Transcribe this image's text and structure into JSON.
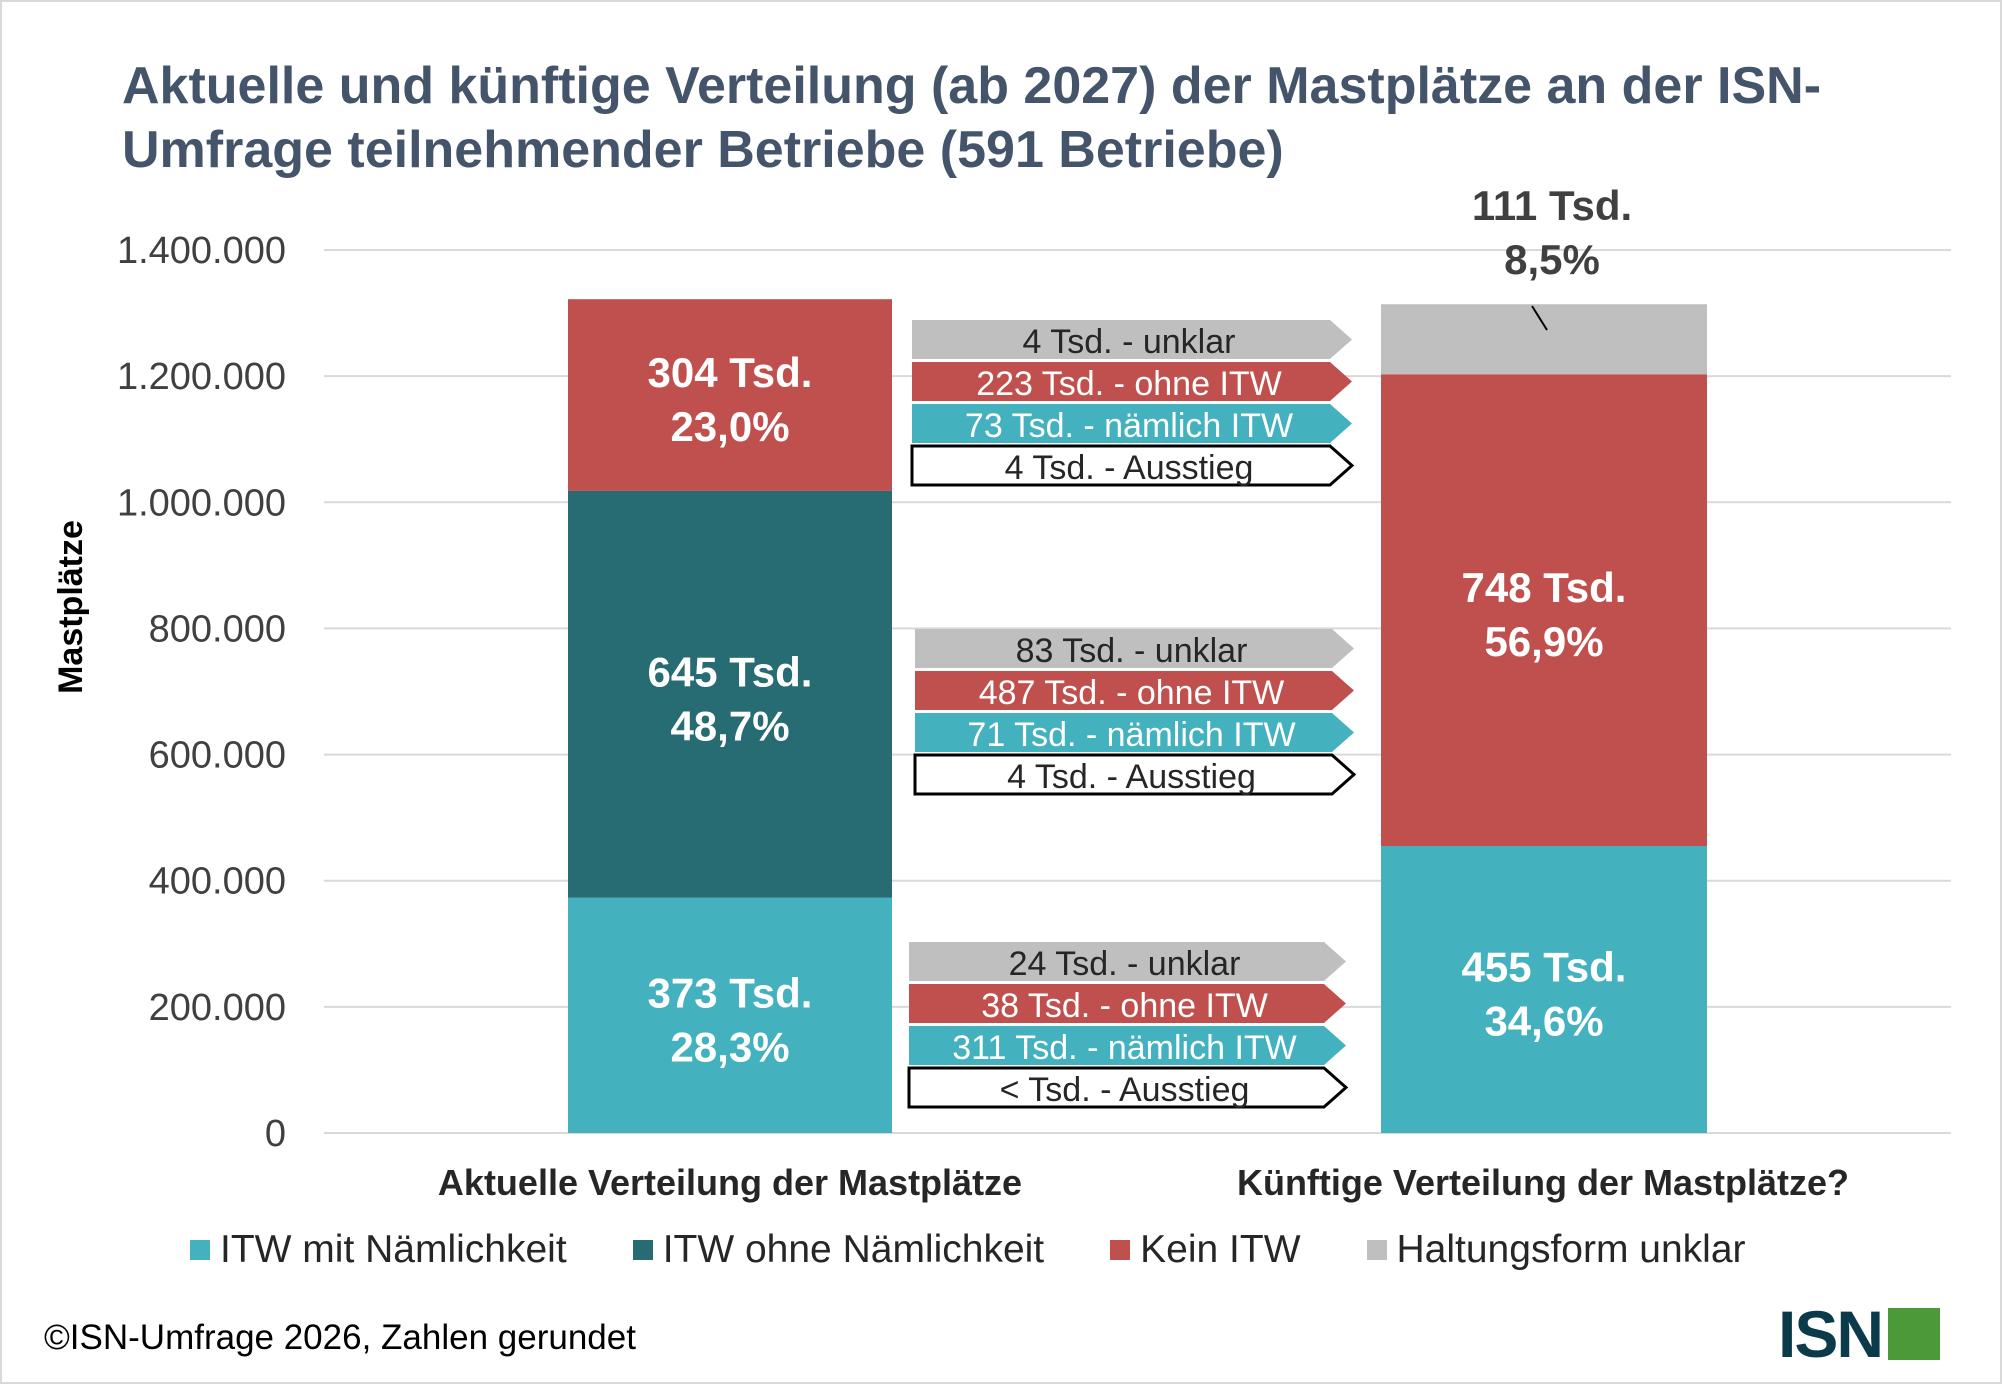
{
  "title": "Aktuelle und künftige Verteilung (ab 2027) der Mastplätze an der ISN-Umfrage teilnehmender Betriebe (591 Betriebe)",
  "footer": "©ISN-Umfrage 2026, Zahlen gerundet",
  "logo": "ISN",
  "chart_data": {
    "type": "bar",
    "stacked": true,
    "ylabel": "Mastplätze",
    "ylim": [
      0,
      1400000
    ],
    "yticks": [
      "0",
      "200.000",
      "400.000",
      "600.000",
      "800.000",
      "1.000.000",
      "1.200.000",
      "1.400.000"
    ],
    "grid": true,
    "legend_position": "bottom",
    "categories": [
      "Aktuelle Verteilung der Mastplätze",
      "Künftige Verteilung der Mastplätze?"
    ],
    "series": [
      {
        "name": "ITW mit Nämlichkeit",
        "color": "#43b1be",
        "values": [
          373000,
          455000
        ],
        "labels": [
          [
            "373 Tsd.",
            "28,3%"
          ],
          [
            "455 Tsd.",
            "34,6%"
          ]
        ]
      },
      {
        "name": "ITW ohne Nämlichkeit",
        "color": "#276c73",
        "values": [
          645000,
          0
        ],
        "labels": [
          [
            "645 Tsd.",
            "48,7%"
          ],
          null
        ]
      },
      {
        "name": "Kein ITW",
        "color": "#c0504d",
        "values": [
          304000,
          748000
        ],
        "labels": [
          [
            "304 Tsd.",
            "23,0%"
          ],
          [
            "748 Tsd.",
            "56,9%"
          ]
        ]
      },
      {
        "name": "Haltungsform unklar",
        "color": "#bfbfbf",
        "values": [
          0,
          111000
        ],
        "labels": [
          null,
          [
            "111 Tsd.",
            "8,5%"
          ]
        ]
      }
    ],
    "flows": [
      [
        {
          "text": "4 Tsd. - unklar",
          "kind": "unklar"
        },
        {
          "text": "223 Tsd. - ohne ITW",
          "kind": "ohne"
        },
        {
          "text": "73 Tsd. - nämlich ITW",
          "kind": "itw"
        },
        {
          "text": "4 Tsd. - Ausstieg",
          "kind": "aus"
        }
      ],
      [
        {
          "text": "83 Tsd. - unklar",
          "kind": "unklar"
        },
        {
          "text": "487 Tsd. - ohne ITW",
          "kind": "ohne"
        },
        {
          "text": "71 Tsd. - nämlich ITW",
          "kind": "itw"
        },
        {
          "text": "4 Tsd. - Ausstieg",
          "kind": "aus"
        }
      ],
      [
        {
          "text": "24 Tsd. - unklar",
          "kind": "unklar"
        },
        {
          "text": "38 Tsd. - ohne ITW",
          "kind": "ohne"
        },
        {
          "text": "311 Tsd. - nämlich ITW",
          "kind": "itw"
        },
        {
          "text": "< Tsd. - Ausstieg",
          "kind": "aus"
        }
      ]
    ]
  }
}
